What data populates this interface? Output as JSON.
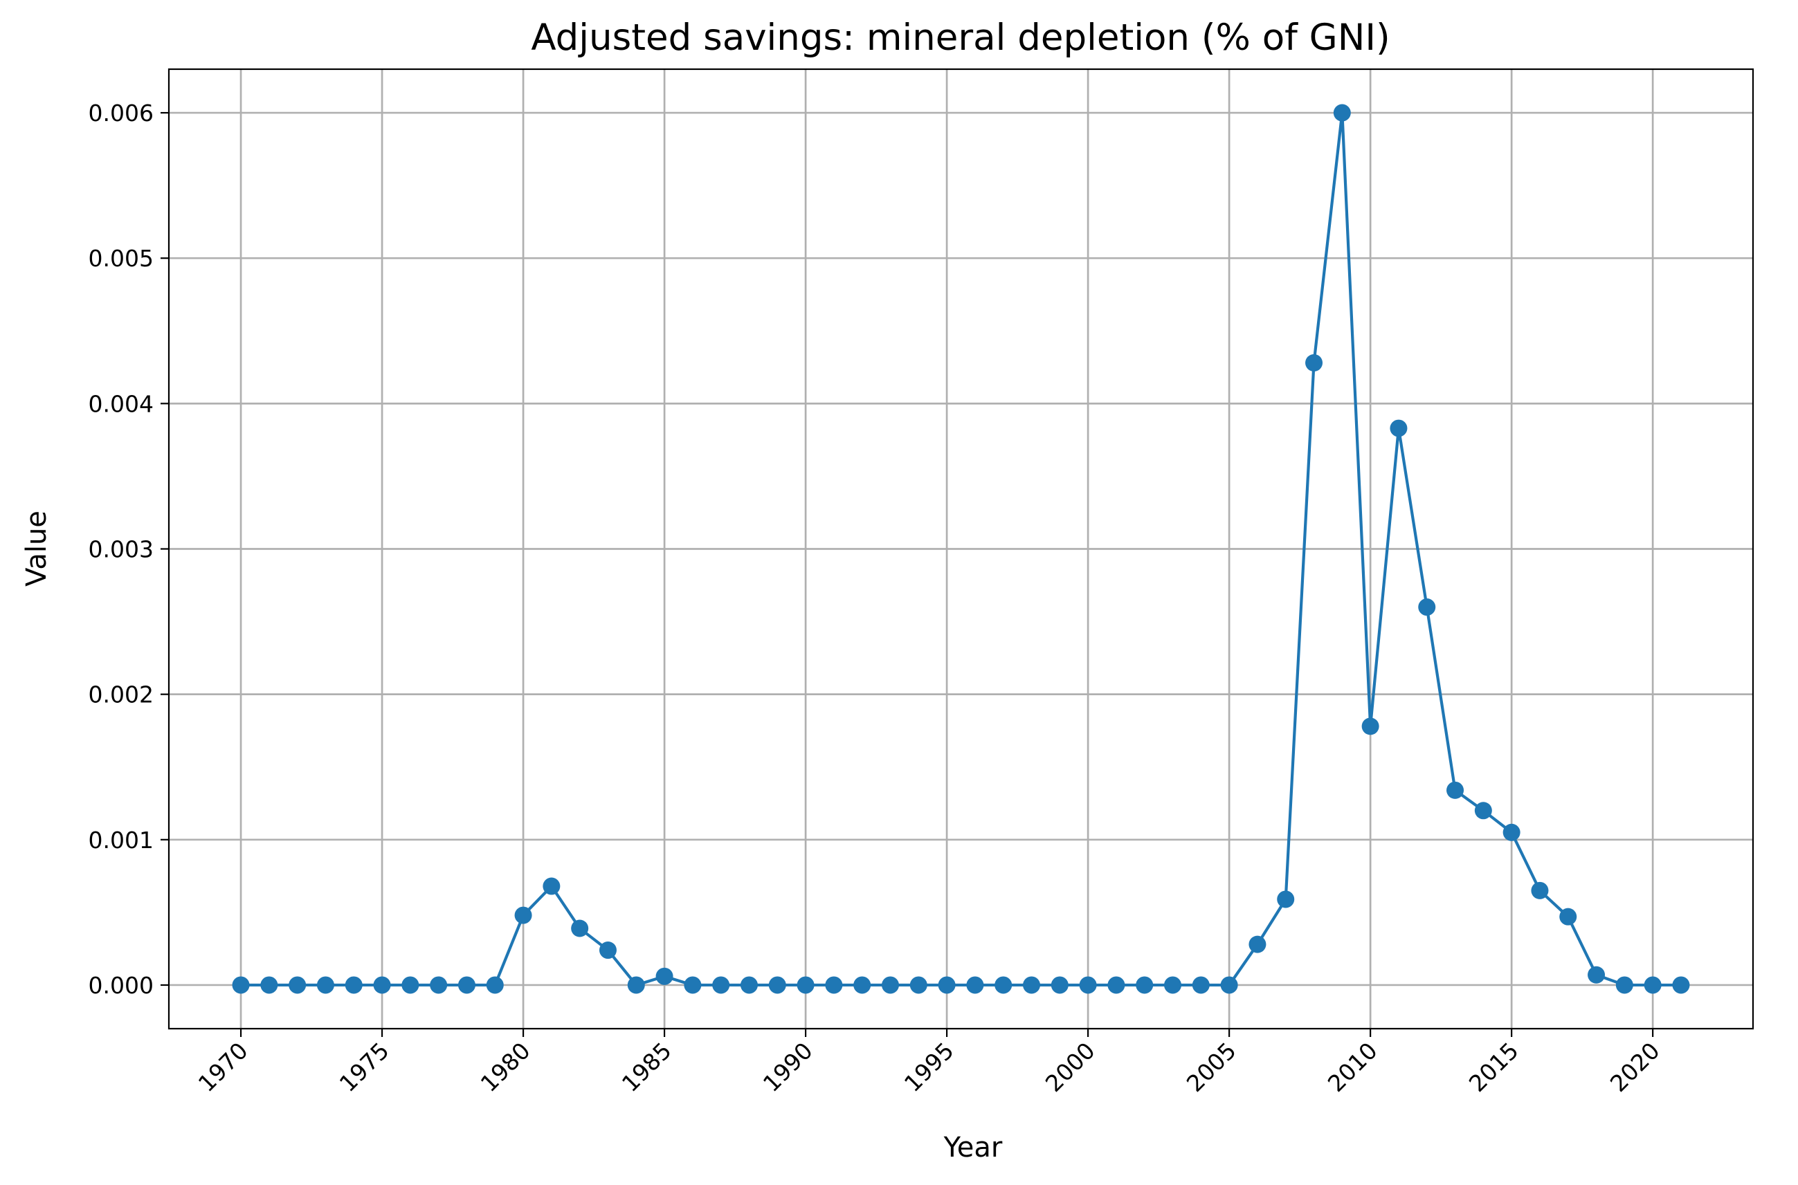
{
  "chart_data": {
    "type": "line",
    "title": "Adjusted savings: mineral depletion (% of GNI)",
    "xlabel": "Year",
    "ylabel": "Value",
    "x": [
      1970,
      1971,
      1972,
      1973,
      1974,
      1975,
      1976,
      1977,
      1978,
      1979,
      1980,
      1981,
      1982,
      1983,
      1984,
      1985,
      1986,
      1987,
      1988,
      1989,
      1990,
      1991,
      1992,
      1993,
      1994,
      1995,
      1996,
      1997,
      1998,
      1999,
      2000,
      2001,
      2002,
      2003,
      2004,
      2005,
      2006,
      2007,
      2008,
      2009,
      2010,
      2011,
      2012,
      2013,
      2014,
      2015,
      2016,
      2017,
      2018,
      2019,
      2020,
      2021
    ],
    "series": [
      {
        "values": [
          0,
          0,
          0,
          0,
          0,
          0,
          0,
          0,
          0,
          0,
          0.00048,
          0.00068,
          0.00039,
          0.00024,
          0,
          6e-05,
          0,
          0,
          0,
          0,
          0,
          0,
          0,
          0,
          0,
          0,
          0,
          0,
          0,
          0,
          0,
          0,
          0,
          0,
          0,
          0,
          0.00028,
          0.00059,
          0.00428,
          0.006,
          0.00178,
          0.00383,
          0.0026,
          0.00134,
          0.0012,
          0.00105,
          0.00065,
          0.00047,
          7e-05,
          0,
          0,
          0
        ],
        "color": "#1f77b4"
      }
    ],
    "xticks": [
      1970,
      1975,
      1980,
      1985,
      1990,
      1995,
      2000,
      2005,
      2010,
      2015,
      2020
    ],
    "xtick_labels": [
      "1970",
      "1975",
      "1980",
      "1985",
      "1990",
      "1995",
      "2000",
      "2005",
      "2010",
      "2015",
      "2020"
    ],
    "yticks": [
      0,
      0.001,
      0.002,
      0.003,
      0.004,
      0.005,
      0.006
    ],
    "ytick_labels": [
      "0.000",
      "0.001",
      "0.002",
      "0.003",
      "0.004",
      "0.005",
      "0.006"
    ],
    "xlim": [
      1967.45,
      2023.55
    ],
    "ylim": [
      -0.0003,
      0.0063
    ],
    "grid": true,
    "marker": "circle"
  }
}
